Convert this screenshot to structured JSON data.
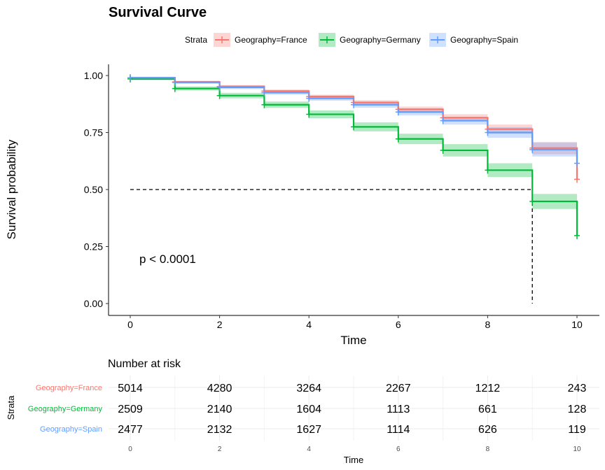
{
  "chart_data": {
    "type": "line",
    "title": "Survival Curve",
    "xlabel": "Time",
    "ylabel": "Survival probability",
    "xlim": [
      0,
      10
    ],
    "ylim": [
      0,
      1
    ],
    "x_ticks": [
      "0",
      "2",
      "4",
      "6",
      "8",
      "10"
    ],
    "y_ticks": [
      "0.00",
      "0.25",
      "0.50",
      "0.75",
      "1.00"
    ],
    "legend_title": "Strata",
    "legend_position": "top",
    "pvalue_label": "p < 0.0001",
    "median_line": {
      "y": 0.5,
      "x": 9
    },
    "series": [
      {
        "name": "Geography=France",
        "color": "#F8766D",
        "times": [
          0,
          1,
          2,
          3,
          4,
          5,
          6,
          7,
          8,
          9,
          10
        ],
        "survival": [
          0.99,
          0.972,
          0.952,
          0.932,
          0.908,
          0.882,
          0.852,
          0.815,
          0.765,
          0.682,
          0.545
        ],
        "ci_lower": [
          0.986,
          0.967,
          0.946,
          0.925,
          0.9,
          0.872,
          0.84,
          0.8,
          0.745,
          0.655,
          0.545
        ],
        "ci_upper": [
          0.994,
          0.977,
          0.958,
          0.939,
          0.916,
          0.892,
          0.864,
          0.83,
          0.785,
          0.709,
          0.545
        ]
      },
      {
        "name": "Geography=Germany",
        "color": "#00BA38",
        "times": [
          0,
          1,
          2,
          3,
          4,
          5,
          6,
          7,
          8,
          9,
          10
        ],
        "survival": [
          0.985,
          0.943,
          0.912,
          0.872,
          0.83,
          0.775,
          0.722,
          0.672,
          0.585,
          0.448,
          0.298
        ],
        "ci_lower": [
          0.98,
          0.934,
          0.9,
          0.858,
          0.813,
          0.755,
          0.699,
          0.645,
          0.555,
          0.415,
          0.298
        ],
        "ci_upper": [
          0.99,
          0.952,
          0.924,
          0.886,
          0.847,
          0.795,
          0.745,
          0.699,
          0.615,
          0.481,
          0.298
        ]
      },
      {
        "name": "Geography=Spain",
        "color": "#619CFF",
        "times": [
          0,
          1,
          2,
          3,
          4,
          5,
          6,
          7,
          8,
          9,
          10
        ],
        "survival": [
          0.99,
          0.97,
          0.948,
          0.925,
          0.9,
          0.872,
          0.84,
          0.802,
          0.75,
          0.675,
          0.615
        ],
        "ci_lower": [
          0.985,
          0.964,
          0.94,
          0.916,
          0.889,
          0.859,
          0.825,
          0.785,
          0.727,
          0.645,
          0.615
        ],
        "ci_upper": [
          0.995,
          0.976,
          0.956,
          0.934,
          0.911,
          0.885,
          0.855,
          0.819,
          0.773,
          0.705,
          0.615
        ]
      }
    ]
  },
  "risk_table": {
    "title": "Number at risk",
    "ylabel": "Strata",
    "xlabel": "Time",
    "x_ticks": [
      "0",
      "2",
      "4",
      "6",
      "8",
      "10"
    ],
    "times": [
      0,
      2,
      4,
      6,
      8,
      10
    ],
    "rows": [
      {
        "label": "Geography=France",
        "color": "#F8766D",
        "values": [
          "5014",
          "4280",
          "3264",
          "2267",
          "1212",
          "243"
        ]
      },
      {
        "label": "Geography=Germany",
        "color": "#00BA38",
        "values": [
          "2509",
          "2140",
          "1604",
          "1113",
          "661",
          "128"
        ]
      },
      {
        "label": "Geography=Spain",
        "color": "#619CFF",
        "values": [
          "2477",
          "2132",
          "1627",
          "1114",
          "626",
          "119"
        ]
      }
    ]
  }
}
